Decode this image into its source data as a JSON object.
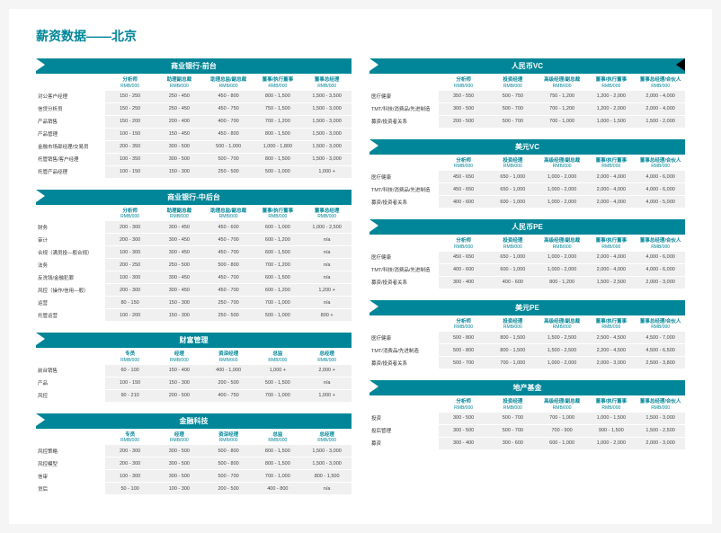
{
  "page_title": "薪资数据——北京",
  "colors": {
    "accent": "#008698",
    "cell_bg": "#f0f0f0",
    "decor": "#000000"
  },
  "unit": "RMB/000",
  "left_sections": [
    {
      "title": "商业银行-前台",
      "headers": [
        "分析师",
        "助理副总裁",
        "助理总监/副总裁",
        "董事/执行董事",
        "董事总经理"
      ],
      "rows": [
        {
          "label": "对公客户经理",
          "cells": [
            "150 - 250",
            "250 - 450",
            "450 - 800",
            "800 - 1,500",
            "1,500 - 3,500"
          ]
        },
        {
          "label": "信贷分析员",
          "cells": [
            "150 - 250",
            "250 - 450",
            "450 - 750",
            "750 - 1,500",
            "1,500 - 3,000"
          ]
        },
        {
          "label": "产品销售",
          "cells": [
            "150 - 200",
            "200 - 400",
            "400 - 700",
            "700 - 1,200",
            "1,500 - 3,000"
          ]
        },
        {
          "label": "产品管理",
          "cells": [
            "100 - 150",
            "150 - 450",
            "450 - 800",
            "800 - 1,500",
            "1,500 - 3,000"
          ]
        },
        {
          "label": "金融市场部经理/交易员",
          "cells": [
            "200 - 350",
            "300 - 500",
            "500 - 1,000",
            "1,000 - 1,800",
            "1,500 - 3,000"
          ]
        },
        {
          "label": "托管销售/客户经理",
          "cells": [
            "100 - 350",
            "300 - 500",
            "500 - 700",
            "800 - 1,500",
            "1,500 - 3,000"
          ]
        },
        {
          "label": "托管产品经理",
          "cells": [
            "100 - 150",
            "150 - 300",
            "250 - 500",
            "500 - 1,000",
            "1,000 +"
          ]
        }
      ]
    },
    {
      "title": "商业银行-中后台",
      "headers": [
        "分析师",
        "助理副总裁",
        "助理总监/副总裁",
        "董事/执行董事",
        "董事总经理"
      ],
      "rows": [
        {
          "label": "财务",
          "cells": [
            "200 - 300",
            "300 - 450",
            "450 - 600",
            "600 - 1,000",
            "1,000 - 2,500"
          ]
        },
        {
          "label": "审计",
          "cells": [
            "200 - 300",
            "300 - 450",
            "450 - 700",
            "600 - 1,200",
            "n/a"
          ]
        },
        {
          "label": "合规（满员投—般合规）",
          "cells": [
            "100 - 300",
            "300 - 450",
            "450 - 700",
            "600 - 1,500",
            "n/a"
          ]
        },
        {
          "label": "法务",
          "cells": [
            "200 - 250",
            "250 - 500",
            "500 - 800",
            "700 - 1,200",
            "n/a"
          ]
        },
        {
          "label": "反洗钱/金融犯罪",
          "cells": [
            "100 - 300",
            "300 - 450",
            "450 - 700",
            "600 - 1,500",
            "n/a"
          ]
        },
        {
          "label": "风控（操作/信用—般）",
          "cells": [
            "200 - 300",
            "300 - 450",
            "450 - 700",
            "600 - 1,200",
            "1,200 +"
          ]
        },
        {
          "label": "运营",
          "cells": [
            "80 - 150",
            "150 - 300",
            "250 - 700",
            "700 - 1,000",
            "n/a"
          ]
        },
        {
          "label": "托管运营",
          "cells": [
            "100 - 200",
            "150 - 300",
            "250 - 500",
            "500 - 1,000",
            "800 +"
          ]
        }
      ]
    },
    {
      "title": "财富管理",
      "headers": [
        "专员",
        "经理",
        "资深经理",
        "总监",
        "总经理"
      ],
      "rows": [
        {
          "label": "前台销售",
          "cells": [
            "60 - 100",
            "150 - 400",
            "400 - 1,000",
            "1,000 +",
            "2,000 +"
          ]
        },
        {
          "label": "产品",
          "cells": [
            "100 - 150",
            "150 - 300",
            "200 - 500",
            "500 - 1,500",
            "n/a"
          ]
        },
        {
          "label": "风控",
          "cells": [
            "90 - 210",
            "200 - 500",
            "400 - 750",
            "700 - 1,000",
            "1,000 +"
          ]
        }
      ]
    },
    {
      "title": "金融科技",
      "headers": [
        "专员",
        "经理",
        "资深经理",
        "总监",
        "总经理"
      ],
      "rows": [
        {
          "label": "风控策略",
          "cells": [
            "200 - 300",
            "300 - 500",
            "500 - 800",
            "800 - 1,500",
            "1,500 - 3,000"
          ]
        },
        {
          "label": "风控模型",
          "cells": [
            "200 - 300",
            "300 - 500",
            "500 - 800",
            "800 - 1,500",
            "1,500 - 3,000"
          ]
        },
        {
          "label": "信审",
          "cells": [
            "100 - 300",
            "300 - 500",
            "500 - 700",
            "700 - 1,000",
            "800 - 1,500"
          ]
        },
        {
          "label": "贷后",
          "cells": [
            "50 - 100",
            "100 - 300",
            "200 - 500",
            "400 - 800",
            "n/a"
          ]
        }
      ]
    }
  ],
  "right_sections": [
    {
      "title": "人民币VC",
      "headers": [
        "分析师",
        "投资经理",
        "高级经理/副总裁",
        "董事/执行董事",
        "董事总经理/合伙人"
      ],
      "rows": [
        {
          "label": "医疗健康",
          "cells": [
            "350 - 550",
            "500 - 750",
            "750 - 1,200",
            "1,200 - 2,000",
            "2,000 - 4,000"
          ]
        },
        {
          "label": "TMT/科技/消费品/先进制造",
          "cells": [
            "300 - 500",
            "500 - 700",
            "700 - 1,200",
            "1,200 - 2,000",
            "2,000 - 4,000"
          ]
        },
        {
          "label": "募资/投资者关系",
          "cells": [
            "200 - 500",
            "500 - 700",
            "700 - 1,000",
            "1,000 - 1,500",
            "1,500 - 2,000"
          ]
        }
      ]
    },
    {
      "title": "美元VC",
      "headers": [
        "分析师",
        "投资经理",
        "高级经理/副总裁",
        "董事/执行董事",
        "董事总经理/合伙人"
      ],
      "rows": [
        {
          "label": "医疗健康",
          "cells": [
            "450 - 650",
            "650 - 1,000",
            "1,000 - 2,000",
            "2,000 - 4,000",
            "4,000 - 6,000"
          ]
        },
        {
          "label": "TMT/科技/消费品/先进制造",
          "cells": [
            "450 - 650",
            "650 - 1,000",
            "1,000 - 2,000",
            "2,000 - 4,000",
            "4,000 - 6,000"
          ]
        },
        {
          "label": "募资/投资者关系",
          "cells": [
            "400 - 600",
            "600 - 1,000",
            "1,000 - 2,000",
            "2,000 - 4,000",
            "4,000 - 5,000"
          ]
        }
      ]
    },
    {
      "title": "人民币PE",
      "headers": [
        "分析师",
        "投资经理",
        "高级经理/副总裁",
        "董事/执行董事",
        "董事总经理/合伙人"
      ],
      "rows": [
        {
          "label": "医疗健康",
          "cells": [
            "450 - 650",
            "650 - 1,000",
            "1,000 - 2,000",
            "2,000 - 4,000",
            "4,000 - 6,000"
          ]
        },
        {
          "label": "TMT/科技/消费品/先进制造",
          "cells": [
            "400 - 600",
            "600 - 1,000",
            "1,000 - 2,000",
            "2,000 - 4,000",
            "4,000 - 6,000"
          ]
        },
        {
          "label": "募资/投资者关系",
          "cells": [
            "300 - 400",
            "400 - 600",
            "800 - 1,200",
            "1,500 - 2,500",
            "2,000 - 3,000"
          ]
        }
      ]
    },
    {
      "title": "美元PE",
      "headers": [
        "分析师",
        "投资经理",
        "高级经理/副总裁",
        "董事/执行董事",
        "董事总经理/合伙人"
      ],
      "rows": [
        {
          "label": "医疗健康",
          "cells": [
            "500 - 800",
            "800 - 1,500",
            "1,500 - 2,500",
            "2,500 - 4,500",
            "4,500 - 7,000"
          ]
        },
        {
          "label": "TMT/消费品/先进制造",
          "cells": [
            "500 - 800",
            "800 - 1,500",
            "1,500 - 2,500",
            "2,200 - 4,500",
            "4,500 - 6,500"
          ]
        },
        {
          "label": "募资/投资者关系",
          "cells": [
            "500 - 700",
            "700 - 1,000",
            "1,000 - 2,000",
            "2,000 - 3,000",
            "2,500 - 3,800"
          ]
        }
      ]
    },
    {
      "title": "地产基金",
      "headers": [
        "分析师",
        "投资经理",
        "高级经理/副总裁",
        "董事/执行董事",
        "董事总经理/合伙人"
      ],
      "rows": [
        {
          "label": "投资",
          "cells": [
            "300 - 500",
            "500 - 700",
            "700 - 1,000",
            "1,000 - 1,500",
            "1,500 - 3,000"
          ]
        },
        {
          "label": "投后管理",
          "cells": [
            "300 - 500",
            "500 - 700",
            "700 - 900",
            "900 - 1,500",
            "1,500 - 2,500"
          ]
        },
        {
          "label": "募资",
          "cells": [
            "300 - 400",
            "300 - 600",
            "600 - 1,000",
            "1,000 - 2,000",
            "2,000 - 3,000"
          ]
        }
      ]
    }
  ]
}
